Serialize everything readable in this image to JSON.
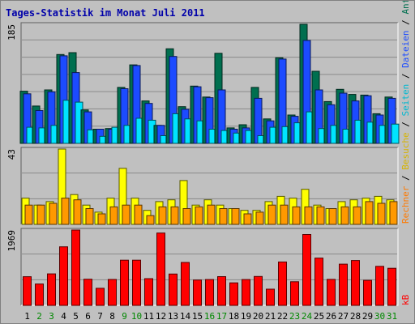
{
  "chart_data": {
    "type": "bar",
    "title": "Tages-Statistik im Monat Juli 2011",
    "categories": [
      "1",
      "2",
      "3",
      "4",
      "5",
      "6",
      "7",
      "8",
      "9",
      "10",
      "11",
      "12",
      "13",
      "14",
      "15",
      "16",
      "17",
      "18",
      "19",
      "20",
      "21",
      "22",
      "23",
      "24",
      "25",
      "26",
      "27",
      "28",
      "29",
      "30",
      "31"
    ],
    "weekend_days": [
      "2",
      "3",
      "9",
      "10",
      "16",
      "17",
      "23",
      "24",
      "30",
      "31"
    ],
    "panels": [
      {
        "name": "seiten_dateien_anfragen",
        "ymax": 185,
        "ymax_label": "185",
        "series": [
          {
            "name": "Anfragen",
            "color": "#006f4f",
            "values": [
              81,
              58,
              83,
              138,
              141,
              52,
              22,
              23,
              87,
              122,
              66,
              28,
              147,
              57,
              89,
              72,
              140,
              24,
              29,
              87,
              38,
              133,
              44,
              185,
              112,
              65,
              84,
              76,
              75,
              46,
              72
            ]
          },
          {
            "name": "Dateien",
            "color": "#1c4bff",
            "values": [
              77,
              51,
              80,
              136,
              110,
              49,
              22,
              22,
              85,
              121,
              62,
              28,
              135,
              53,
              88,
              71,
              83,
              22,
              24,
              70,
              35,
              131,
              42,
              160,
              83,
              60,
              78,
              66,
              74,
              44,
              70
            ]
          },
          {
            "name": "Seiten",
            "color": "#00e4ff",
            "values": [
              25,
              24,
              28,
              67,
              64,
              21,
              11,
              25,
              28,
              39,
              36,
              12,
              46,
              38,
              35,
              22,
              20,
              16,
              20,
              12,
              25,
              26,
              32,
              49,
              23,
              28,
              22,
              36,
              33,
              28,
              30
            ]
          }
        ]
      },
      {
        "name": "besuche_rechner",
        "ymax": 43,
        "ymax_label": "43",
        "series": [
          {
            "name": "Besuche",
            "color": "#ffff00",
            "values": [
              15,
              11,
              13,
              43,
              17,
              11,
              7,
              15,
              32,
              15,
              8,
              13,
              14,
              25,
              11,
              14,
              11,
              9,
              8,
              8,
              13,
              16,
              15,
              20,
              11,
              9,
              13,
              14,
              15,
              16,
              14
            ]
          },
          {
            "name": "Rechner",
            "color": "#ff9900",
            "values": [
              11,
              11,
              12,
              15,
              14,
              9,
              6,
              10,
              11,
              11,
              5,
              10,
              10,
              9,
              10,
              11,
              9,
              9,
              6,
              7,
              11,
              11,
              10,
              10,
              10,
              9,
              10,
              10,
              13,
              12,
              13
            ]
          }
        ]
      },
      {
        "name": "kb",
        "ymax": 1969,
        "ymax_label": "1969",
        "series": [
          {
            "name": "kB",
            "color": "#ff0000",
            "values": [
              750,
              560,
              824,
              1531,
              1969,
              684,
              446,
              678,
              1181,
              1181,
              699,
              1891,
              820,
              1122,
              663,
              675,
              752,
              589,
              676,
              755,
              424,
              1134,
              619,
              1852,
              1237,
              679,
              1077,
              1173,
              655,
              1020,
              970
            ]
          }
        ]
      }
    ],
    "right_legend": [
      {
        "label": "Anfragen",
        "color": "#006f4f"
      },
      {
        "label": "/",
        "color": "#000000"
      },
      {
        "label": "Dateien",
        "color": "#1c4bff"
      },
      {
        "label": "/",
        "color": "#000000"
      },
      {
        "label": "Seiten",
        "color": "#00b8d0"
      },
      {
        "label": "/",
        "color": "#000000"
      },
      {
        "label": "Besuche",
        "color": "#d6b400"
      },
      {
        "label": "/",
        "color": "#000000"
      },
      {
        "label": "Rechner",
        "color": "#ff7a00"
      },
      {
        "label": "kB",
        "color": "#ff0000"
      }
    ],
    "colors": {
      "background": "#c0c0c0",
      "plot_background": "#c0c0c0",
      "title": "#0000aa",
      "grid": "#8a8a8a",
      "weekday_tick": "#000000",
      "weekend_tick": "#008800"
    }
  }
}
